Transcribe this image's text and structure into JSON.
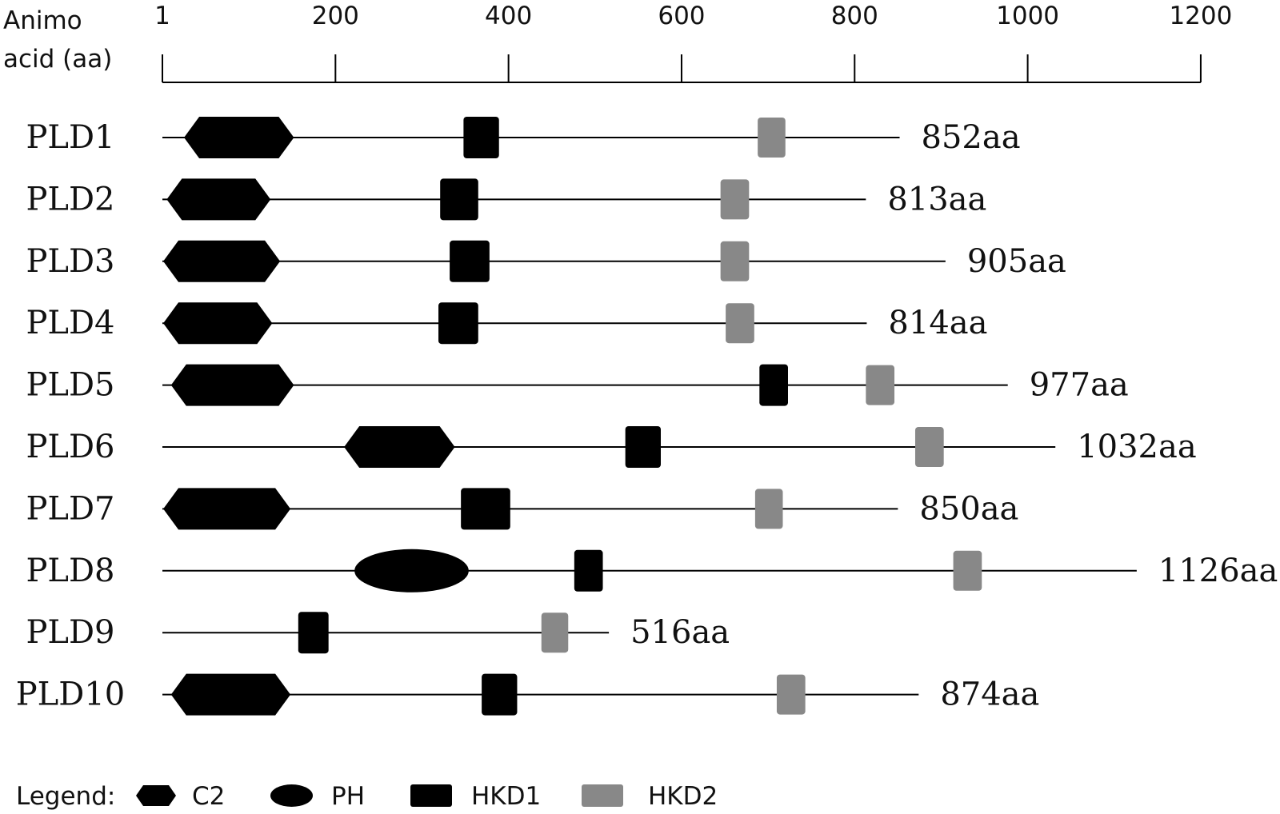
{
  "axis": {
    "label_line1": "Animo",
    "label_line2": "acid (aa)",
    "ticks": [
      {
        "value": 1,
        "label": "1"
      },
      {
        "value": 200,
        "label": "200"
      },
      {
        "value": 400,
        "label": "400"
      },
      {
        "value": 600,
        "label": "600"
      },
      {
        "value": 800,
        "label": "800"
      },
      {
        "value": 1000,
        "label": "1000"
      },
      {
        "value": 1200,
        "label": "1200"
      }
    ]
  },
  "proteins": [
    {
      "name": "PLD1",
      "length": 852,
      "length_label": "852aa",
      "domains": [
        {
          "type": "C2",
          "start": 25,
          "end": 152
        },
        {
          "type": "HKD1",
          "start": 348,
          "end": 389
        },
        {
          "type": "HKD2",
          "start": 688,
          "end": 720
        }
      ]
    },
    {
      "name": "PLD2",
      "length": 813,
      "length_label": "813aa",
      "domains": [
        {
          "type": "C2",
          "start": 5,
          "end": 125
        },
        {
          "type": "HKD1",
          "start": 321,
          "end": 365
        },
        {
          "type": "HKD2",
          "start": 645,
          "end": 678
        }
      ]
    },
    {
      "name": "PLD3",
      "length": 905,
      "length_label": "905aa",
      "domains": [
        {
          "type": "C2",
          "start": 1,
          "end": 136
        },
        {
          "type": "HKD1",
          "start": 332,
          "end": 378
        },
        {
          "type": "HKD2",
          "start": 645,
          "end": 678
        }
      ]
    },
    {
      "name": "PLD4",
      "length": 814,
      "length_label": "814aa",
      "domains": [
        {
          "type": "C2",
          "start": 1,
          "end": 127
        },
        {
          "type": "HKD1",
          "start": 319,
          "end": 365
        },
        {
          "type": "HKD2",
          "start": 651,
          "end": 684
        }
      ]
    },
    {
      "name": "PLD5",
      "length": 977,
      "length_label": "977aa",
      "domains": [
        {
          "type": "C2",
          "start": 10,
          "end": 152
        },
        {
          "type": "HKD1",
          "start": 690,
          "end": 723
        },
        {
          "type": "HKD2",
          "start": 813,
          "end": 846
        }
      ]
    },
    {
      "name": "PLD6",
      "length": 1032,
      "length_label": "1032aa",
      "domains": [
        {
          "type": "C2",
          "start": 210,
          "end": 338
        },
        {
          "type": "HKD1",
          "start": 535,
          "end": 576
        },
        {
          "type": "HKD2",
          "start": 870,
          "end": 903
        }
      ]
    },
    {
      "name": "PLD7",
      "length": 850,
      "length_label": "850aa",
      "domains": [
        {
          "type": "C2",
          "start": 1,
          "end": 148
        },
        {
          "type": "HKD1",
          "start": 345,
          "end": 402
        },
        {
          "type": "HKD2",
          "start": 685,
          "end": 717
        }
      ]
    },
    {
      "name": "PLD8",
      "length": 1126,
      "length_label": "1126aa",
      "domains": [
        {
          "type": "PH",
          "start": 222,
          "end": 354
        },
        {
          "type": "HKD1",
          "start": 476,
          "end": 509
        },
        {
          "type": "HKD2",
          "start": 914,
          "end": 947
        }
      ]
    },
    {
      "name": "PLD9",
      "length": 516,
      "length_label": "516aa",
      "domains": [
        {
          "type": "HKD1",
          "start": 157,
          "end": 192
        },
        {
          "type": "HKD2",
          "start": 438,
          "end": 469
        }
      ]
    },
    {
      "name": "PLD10",
      "length": 874,
      "length_label": "874aa",
      "domains": [
        {
          "type": "C2",
          "start": 10,
          "end": 148
        },
        {
          "type": "HKD1",
          "start": 369,
          "end": 410
        },
        {
          "type": "HKD2",
          "start": 710,
          "end": 743
        }
      ]
    }
  ],
  "legend": {
    "label": "Legend:",
    "items": [
      {
        "type": "C2",
        "label": "C2"
      },
      {
        "type": "PH",
        "label": "PH"
      },
      {
        "type": "HKD1",
        "label": "HKD1"
      },
      {
        "type": "HKD2",
        "label": "HKD2"
      }
    ]
  },
  "colors": {
    "backbone": "#000000",
    "C2": "#000000",
    "PH": "#000000",
    "HKD1": "#000000",
    "HKD2": "#888888"
  }
}
